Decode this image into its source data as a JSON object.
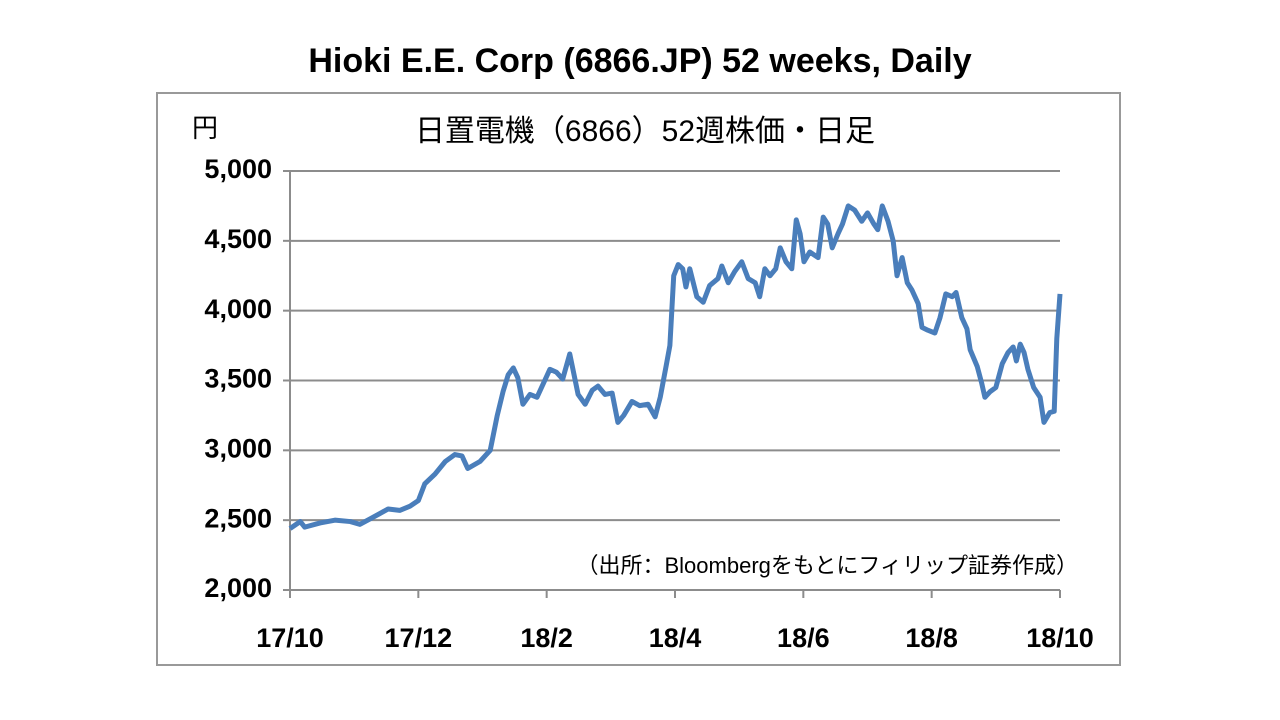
{
  "chart_data": {
    "type": "line",
    "title": "Hioki E.E. Corp (6866.JP) 52 weeks, Daily",
    "subtitle": "日置電機（6866）52週株価・日足",
    "y_label": "円",
    "annotation": "（出所：Bloombergをもとにフィリップ証券作成）",
    "x": [
      0,
      0.16,
      0.23,
      0.47,
      0.7,
      0.94,
      1.09,
      1.25,
      1.53,
      1.71,
      1.87,
      2.0,
      2.1,
      2.26,
      2.42,
      2.57,
      2.68,
      2.77,
      2.96,
      3.12,
      3.23,
      3.32,
      3.4,
      3.48,
      3.55,
      3.63,
      3.74,
      3.85,
      3.97,
      4.05,
      4.15,
      4.25,
      4.36,
      4.49,
      4.6,
      4.71,
      4.8,
      4.91,
      5.02,
      5.11,
      5.2,
      5.33,
      5.45,
      5.58,
      5.69,
      5.77,
      5.86,
      5.92,
      5.98,
      6.05,
      6.12,
      6.17,
      6.23,
      6.34,
      6.44,
      6.54,
      6.67,
      6.73,
      6.83,
      6.93,
      7.04,
      7.14,
      7.25,
      7.32,
      7.4,
      7.48,
      7.57,
      7.64,
      7.73,
      7.82,
      7.89,
      7.95,
      8.01,
      8.1,
      8.23,
      8.31,
      8.38,
      8.45,
      8.54,
      8.61,
      8.7,
      8.8,
      8.91,
      9.0,
      9.1,
      9.16,
      9.23,
      9.32,
      9.4,
      9.46,
      9.54,
      9.62,
      9.69,
      9.79,
      9.85,
      9.94,
      10.05,
      10.13,
      10.22,
      10.32,
      10.38,
      10.47,
      10.55,
      10.6,
      10.71,
      10.78,
      10.83,
      10.91,
      11.0,
      11.1,
      11.19,
      11.27,
      11.32,
      11.38,
      11.44,
      11.5,
      11.59,
      11.69,
      11.75,
      11.84,
      11.91,
      11.95,
      12.0
    ],
    "series": [
      {
        "color": "#4a7ebb",
        "values": [
          2440,
          2490,
          2450,
          2480,
          2500,
          2490,
          2470,
          2510,
          2580,
          2570,
          2600,
          2640,
          2760,
          2830,
          2920,
          2970,
          2960,
          2870,
          2920,
          3000,
          3250,
          3420,
          3540,
          3590,
          3520,
          3330,
          3400,
          3380,
          3500,
          3580,
          3560,
          3510,
          3690,
          3400,
          3330,
          3430,
          3460,
          3400,
          3410,
          3200,
          3250,
          3350,
          3320,
          3330,
          3240,
          3380,
          3600,
          3750,
          4250,
          4330,
          4300,
          4170,
          4300,
          4100,
          4060,
          4180,
          4230,
          4320,
          4200,
          4280,
          4350,
          4230,
          4200,
          4100,
          4300,
          4250,
          4300,
          4450,
          4350,
          4300,
          4650,
          4550,
          4350,
          4420,
          4380,
          4670,
          4620,
          4450,
          4550,
          4620,
          4750,
          4720,
          4640,
          4700,
          4620,
          4580,
          4750,
          4640,
          4500,
          4250,
          4380,
          4200,
          4150,
          4050,
          3880,
          3860,
          3840,
          3950,
          4120,
          4100,
          4130,
          3950,
          3870,
          3720,
          3600,
          3480,
          3380,
          3420,
          3450,
          3620,
          3700,
          3740,
          3640,
          3760,
          3700,
          3580,
          3450,
          3380,
          3200,
          3270,
          3280,
          3800,
          4120
        ]
      }
    ],
    "xlim": [
      0,
      12
    ],
    "xticks": [
      {
        "value": 0,
        "label": "17/10"
      },
      {
        "value": 2,
        "label": "17/12"
      },
      {
        "value": 4,
        "label": "18/2"
      },
      {
        "value": 6,
        "label": "18/4"
      },
      {
        "value": 8,
        "label": "18/6"
      },
      {
        "value": 10,
        "label": "18/8"
      },
      {
        "value": 12,
        "label": "18/10"
      }
    ],
    "ylim": [
      2000,
      5000
    ],
    "yticks": [
      {
        "value": 2000,
        "label": "2,000"
      },
      {
        "value": 2500,
        "label": "2,500"
      },
      {
        "value": 3000,
        "label": "3,000"
      },
      {
        "value": 3500,
        "label": "3,500"
      },
      {
        "value": 4000,
        "label": "4,000"
      },
      {
        "value": 4500,
        "label": "4,500"
      },
      {
        "value": 5000,
        "label": "5,000"
      }
    ],
    "grid": true
  }
}
